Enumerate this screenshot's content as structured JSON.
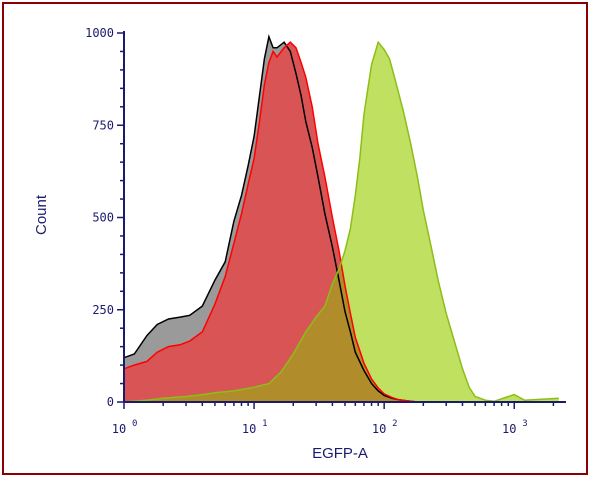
{
  "chart_data": {
    "type": "area",
    "title": "",
    "xlabel": "EGFP-A",
    "ylabel": "Count",
    "xscale": "log",
    "xlim": [
      1,
      2500
    ],
    "ylim": [
      0,
      1000
    ],
    "grid": false,
    "legend": "none",
    "y_ticks": [
      {
        "value": 0,
        "label": "0"
      },
      {
        "value": 250,
        "label": "250"
      },
      {
        "value": 500,
        "label": "500"
      },
      {
        "value": 750,
        "label": "750"
      },
      {
        "value": 1000,
        "label": "1000"
      }
    ],
    "x_ticks": [
      {
        "value": 1,
        "base": "10",
        "exp": "0"
      },
      {
        "value": 10,
        "base": "10",
        "exp": "1"
      },
      {
        "value": 100,
        "base": "10",
        "exp": "2"
      },
      {
        "value": 1000,
        "base": "10",
        "exp": "3"
      }
    ],
    "colors": {
      "axis": "#1b1b6e",
      "frame": "#8b0000"
    },
    "series": [
      {
        "fill": "#9a9a9a",
        "stroke": "#000000",
        "x": [
          1,
          1.2,
          1.5,
          1.8,
          2.2,
          2.7,
          3.2,
          4,
          5,
          6,
          7,
          8,
          9,
          10,
          11,
          12,
          13,
          14,
          15,
          17,
          19,
          21,
          23,
          25,
          28,
          31,
          35,
          40,
          45,
          50,
          55,
          60,
          70,
          80,
          90,
          100,
          115,
          130,
          150,
          180
        ],
        "values": [
          120,
          130,
          180,
          210,
          225,
          230,
          235,
          260,
          330,
          380,
          490,
          560,
          640,
          720,
          830,
          930,
          990,
          960,
          960,
          975,
          950,
          890,
          830,
          760,
          690,
          610,
          510,
          420,
          330,
          245,
          190,
          135,
          85,
          50,
          30,
          18,
          10,
          6,
          3,
          0
        ]
      },
      {
        "fill": "#d95555",
        "stroke": "#ff0000",
        "x": [
          1,
          1.2,
          1.5,
          1.8,
          2.2,
          2.7,
          3.2,
          4,
          5,
          6,
          7,
          8,
          9,
          10,
          11,
          12,
          13,
          14,
          15,
          17,
          19,
          21,
          23,
          25,
          28,
          31,
          35,
          40,
          45,
          50,
          55,
          60,
          70,
          80,
          90,
          100,
          115,
          130,
          150,
          180
        ],
        "values": [
          90,
          100,
          110,
          135,
          150,
          155,
          165,
          190,
          265,
          340,
          430,
          510,
          590,
          660,
          760,
          860,
          920,
          950,
          935,
          960,
          975,
          960,
          920,
          880,
          800,
          700,
          610,
          500,
          410,
          315,
          240,
          175,
          105,
          62,
          38,
          22,
          12,
          6,
          3,
          0
        ]
      },
      {
        "fill": "#bfe060",
        "stroke": "#8cbe18",
        "x": [
          1,
          1.5,
          2,
          3,
          4,
          5,
          7,
          10,
          13,
          16,
          20,
          25,
          30,
          35,
          40,
          45,
          50,
          55,
          60,
          65,
          70,
          75,
          80,
          90,
          100,
          110,
          120,
          140,
          160,
          180,
          200,
          230,
          260,
          300,
          350,
          400,
          450,
          500,
          600,
          700,
          1000,
          1200,
          2200
        ],
        "values": [
          0,
          5,
          10,
          15,
          20,
          25,
          30,
          40,
          50,
          80,
          130,
          190,
          230,
          260,
          320,
          360,
          410,
          470,
          560,
          660,
          780,
          850,
          915,
          975,
          955,
          930,
          880,
          790,
          700,
          610,
          520,
          420,
          330,
          240,
          160,
          90,
          40,
          15,
          5,
          2,
          20,
          5,
          10
        ]
      }
    ]
  }
}
